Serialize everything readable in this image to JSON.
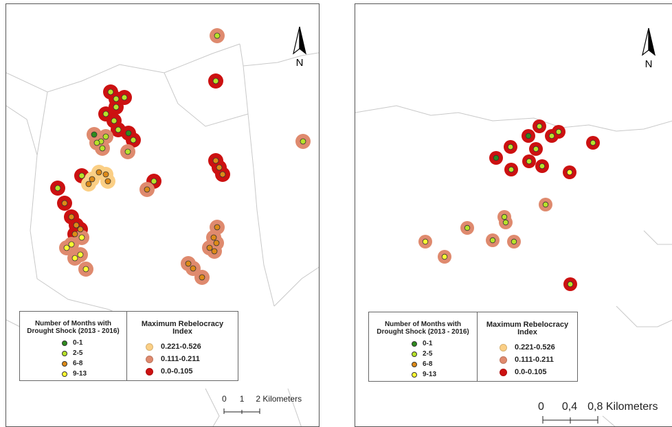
{
  "colors": {
    "months_0_1": "#2e8b1e",
    "months_2_5": "#b7e22a",
    "months_6_8": "#dd8a18",
    "months_9_13": "#ffff33",
    "index_high": "#fbcf85",
    "index_mid": "#df8a6e",
    "index_low": "#cc1111",
    "boundary": "#c8c8c8"
  },
  "north_arrow": {
    "label": "N"
  },
  "legend": {
    "months_title": "Number of Months with Drought Shock (2013 - 2016)",
    "months_items": [
      {
        "label": "0-1",
        "color_key": "months_0_1"
      },
      {
        "label": "2-5",
        "color_key": "months_2_5"
      },
      {
        "label": "6-8",
        "color_key": "months_6_8"
      },
      {
        "label": "9-13",
        "color_key": "months_9_13"
      }
    ],
    "index_title": "Maximum Rebelocracy Index",
    "index_items": [
      {
        "label": "0.221-0.526",
        "color_key": "index_high"
      },
      {
        "label": "0.111-0.211",
        "color_key": "index_mid"
      },
      {
        "label": "0.0-0.105",
        "color_key": "index_low"
      }
    ]
  },
  "left_map": {
    "scale_ticks": [
      "0",
      "1",
      "2"
    ],
    "scale_unit": "Kilometers"
  },
  "right_map": {
    "scale_ticks": [
      "0",
      "0,4",
      "0,8"
    ],
    "scale_unit": "Kilometers"
  }
}
